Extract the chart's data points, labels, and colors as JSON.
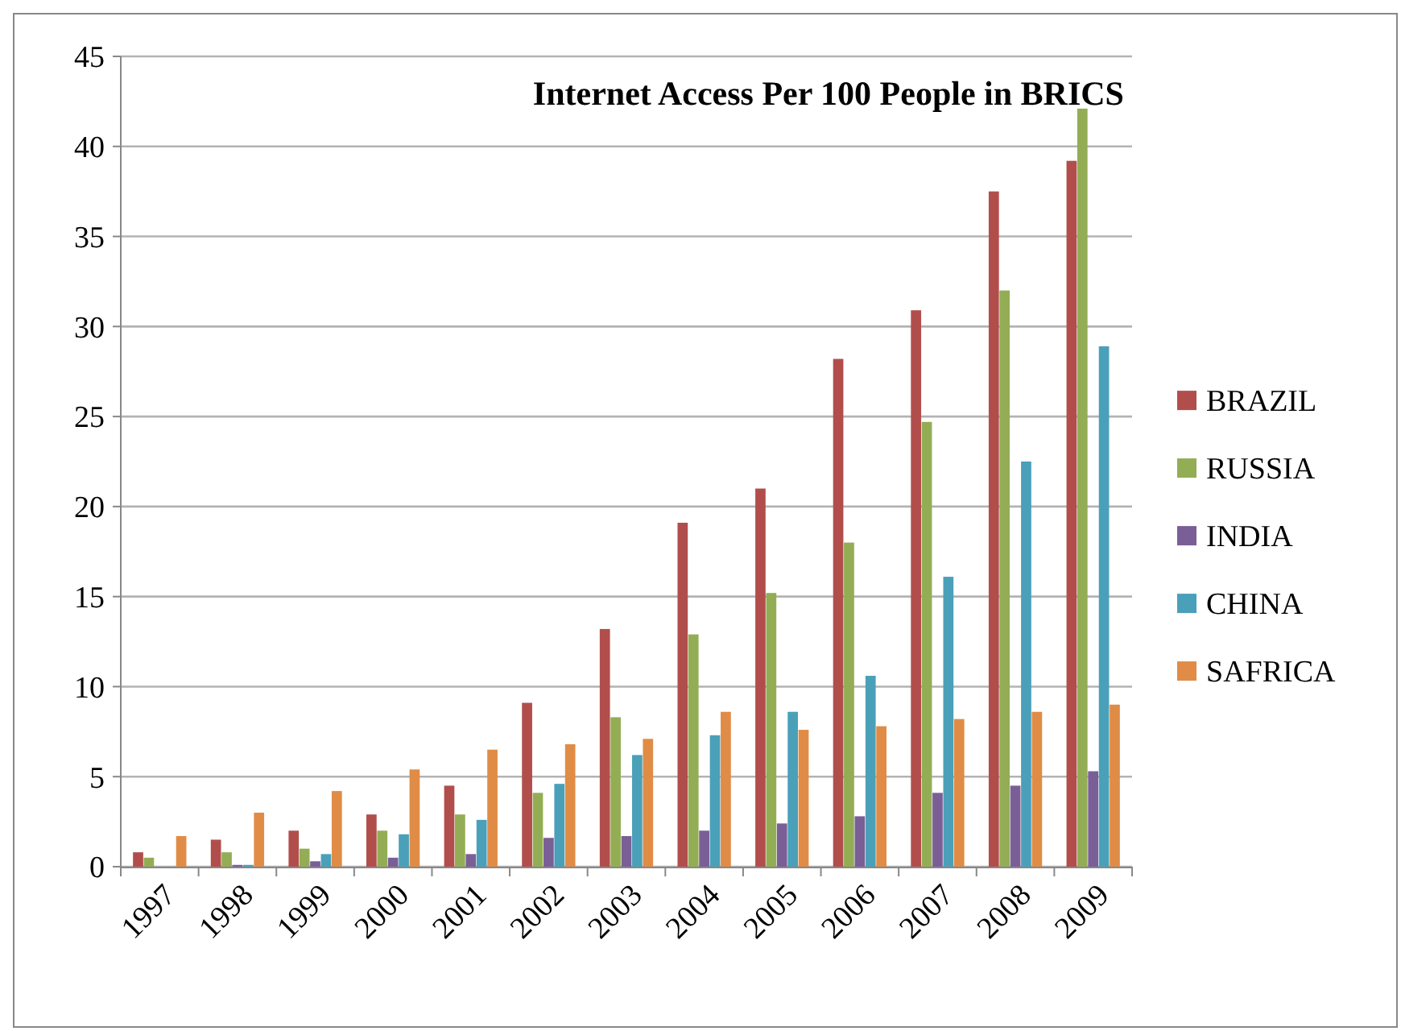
{
  "chart_data": {
    "type": "bar",
    "title": "Internet Access Per 100 People in BRICS",
    "categories": [
      "1997",
      "1998",
      "1999",
      "2000",
      "2001",
      "2002",
      "2003",
      "2004",
      "2005",
      "2006",
      "2007",
      "2008",
      "2009"
    ],
    "series": [
      {
        "name": "BRAZIL",
        "color": "#b14e4c",
        "values": [
          0.8,
          1.5,
          2.0,
          2.9,
          4.5,
          9.1,
          13.2,
          19.1,
          21.0,
          28.2,
          30.9,
          37.5,
          39.2
        ]
      },
      {
        "name": "RUSSIA",
        "color": "#93ad55",
        "values": [
          0.5,
          0.8,
          1.0,
          2.0,
          2.9,
          4.1,
          8.3,
          12.9,
          15.2,
          18.0,
          24.7,
          32.0,
          42.1
        ]
      },
      {
        "name": "INDIA",
        "color": "#7a5f97",
        "values": [
          0,
          0.1,
          0.3,
          0.5,
          0.7,
          1.6,
          1.7,
          2.0,
          2.4,
          2.8,
          4.1,
          4.5,
          5.3
        ]
      },
      {
        "name": "CHINA",
        "color": "#4aa0b8",
        "values": [
          0,
          0.1,
          0.7,
          1.8,
          2.6,
          4.6,
          6.2,
          7.3,
          8.6,
          10.6,
          16.1,
          22.5,
          28.9
        ]
      },
      {
        "name": "SAFRICA",
        "color": "#e08c46",
        "values": [
          1.7,
          3.0,
          4.2,
          5.4,
          6.5,
          6.8,
          7.1,
          8.6,
          7.6,
          7.8,
          8.2,
          8.6,
          9.0
        ]
      }
    ],
    "ylim": [
      0,
      45
    ],
    "yticks": [
      0,
      5,
      10,
      15,
      20,
      25,
      30,
      35,
      40,
      45
    ],
    "grid": "y",
    "legend": "right"
  }
}
